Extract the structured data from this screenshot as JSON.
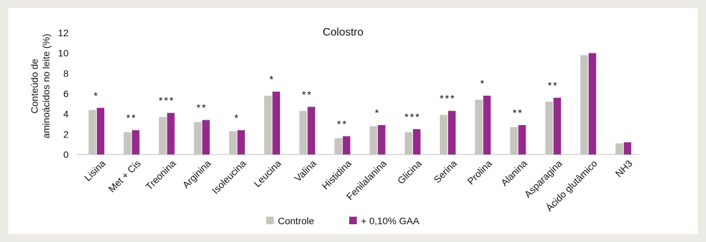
{
  "chart_data": {
    "type": "bar",
    "title": "Colostro",
    "ylabel_line1": "Conteúdo de",
    "ylabel_line2": "aminoácidos no leite (%)",
    "xlabel": "",
    "ylim": [
      0,
      12
    ],
    "yticks": [
      0,
      2,
      4,
      6,
      8,
      10,
      12
    ],
    "grid": false,
    "legend_position": "bottom",
    "categories": [
      "Lisina",
      "Met + Cis",
      "Treonina",
      "Arginina",
      "Isoleucina",
      "Leucina",
      "Valina",
      "Histidina",
      "Fenilalanina",
      "Glicina",
      "Serina",
      "Prolina",
      "Alanina",
      "Asparagina",
      "Ácido glutâmico",
      "NH3"
    ],
    "series": [
      {
        "name": "Controle",
        "color": "#c8c5c0",
        "values": [
          4.4,
          2.2,
          3.7,
          3.2,
          2.3,
          5.8,
          4.3,
          1.6,
          2.8,
          2.2,
          3.9,
          5.4,
          2.7,
          5.2,
          9.8,
          1.1
        ]
      },
      {
        "name": "+ 0,10% GAA",
        "color": "#962a8c",
        "values": [
          4.6,
          2.4,
          4.1,
          3.4,
          2.4,
          6.2,
          4.7,
          1.8,
          2.9,
          2.5,
          4.3,
          5.8,
          2.9,
          5.6,
          10.0,
          1.2
        ]
      }
    ],
    "annotations": [
      "*",
      "**",
      "***",
      "**",
      "*",
      "*",
      "**",
      "**",
      "*",
      "***",
      "***",
      "*",
      "**",
      "**",
      "",
      ""
    ]
  }
}
